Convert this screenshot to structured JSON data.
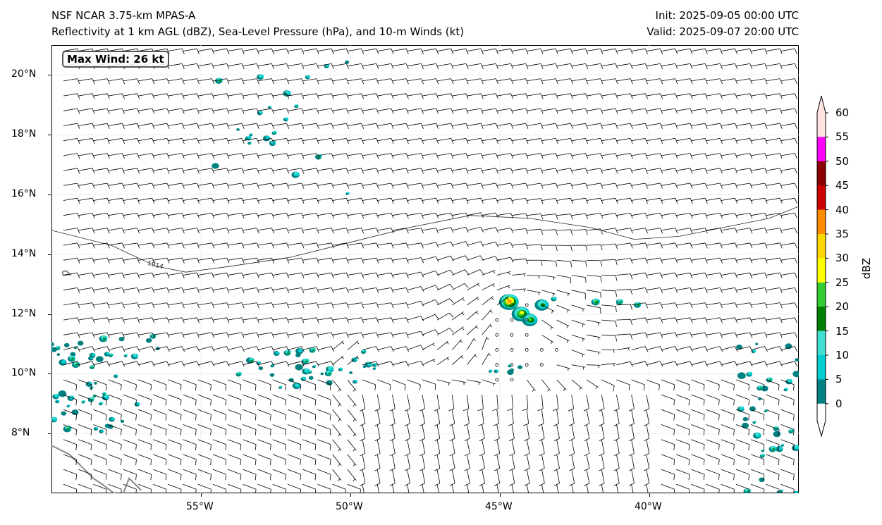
{
  "header": {
    "title_left_1": "NSF NCAR 3.75-km MPAS-A",
    "title_left_2": "Reflectivity at 1 km AGL (dBZ), Sea-Level Pressure (hPa), and 10-m Winds (kt)",
    "title_right_1": "Init: 2025-09-05 00:00 UTC",
    "title_right_2": "Valid: 2025-09-07 20:00 UTC"
  },
  "map": {
    "extent": {
      "lon": [
        -60,
        -35
      ],
      "lat": [
        6,
        21
      ]
    },
    "lat_ticks": [
      {
        "v": 20,
        "label": "20°N"
      },
      {
        "v": 18,
        "label": "18°N"
      },
      {
        "v": 16,
        "label": "16°N"
      },
      {
        "v": 14,
        "label": "14°N"
      },
      {
        "v": 12,
        "label": "12°N"
      },
      {
        "v": 10,
        "label": "10°N"
      },
      {
        "v": 8,
        "label": "8°N"
      }
    ],
    "lon_ticks": [
      {
        "v": -55,
        "label": "55°W"
      },
      {
        "v": -50,
        "label": "50°W"
      },
      {
        "v": -45,
        "label": "45°W"
      },
      {
        "v": -40,
        "label": "40°W"
      }
    ],
    "max_wind_label": "Max Wind: 26 kt",
    "isobar_label": "1014"
  },
  "colorbar": {
    "label": "dBZ",
    "levels": [
      "0",
      "5",
      "10",
      "15",
      "20",
      "25",
      "30",
      "35",
      "40",
      "45",
      "50",
      "55",
      "60"
    ],
    "colors": [
      "#008080",
      "#00ced1",
      "#40e0d0",
      "#008000",
      "#32cd32",
      "#ffff00",
      "#ffd700",
      "#ff8c00",
      "#cc0000",
      "#8b0000",
      "#ff00ff",
      "#ffe4e1"
    ]
  }
}
